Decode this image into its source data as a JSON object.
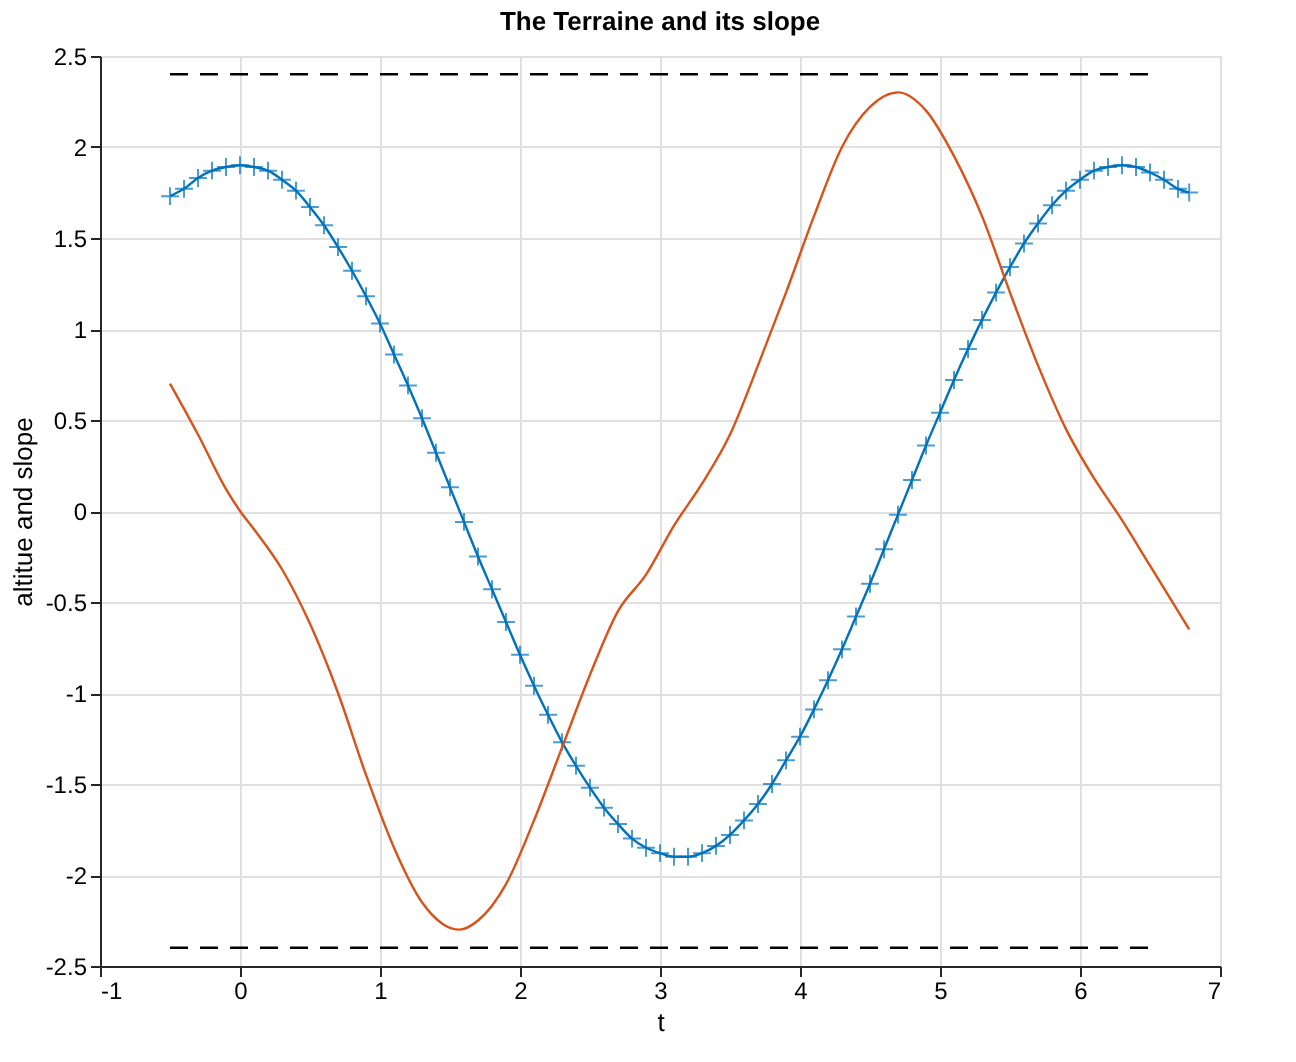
{
  "chart_data": {
    "type": "line",
    "title": "The Terraine and its slope",
    "xlabel": "t",
    "ylabel": "altitue and slope",
    "xlim": [
      -1,
      7
    ],
    "xticks": [
      -1,
      0,
      1,
      2,
      3,
      4,
      5,
      6,
      7
    ],
    "ylim": [
      -2.5,
      2.5
    ],
    "yticks": [
      -2.5,
      -2,
      -1.5,
      -1,
      -0.5,
      0,
      0.5,
      1,
      1.5,
      2,
      2.5
    ],
    "grid": true,
    "series": [
      {
        "type": "line",
        "color": "#0072bd",
        "marker": "cross",
        "line_style": "solid",
        "x": [
          -0.5,
          -0.4,
          -0.3,
          -0.2,
          -0.1,
          0,
          0.1,
          0.2,
          0.3,
          0.4,
          0.5,
          0.6,
          0.7,
          0.8,
          0.9,
          1.0,
          1.1,
          1.2,
          1.3,
          1.4,
          1.5,
          1.6,
          1.7,
          1.8,
          1.9,
          2.0,
          2.1,
          2.2,
          2.3,
          2.4,
          2.5,
          2.6,
          2.7,
          2.8,
          2.9,
          3.0,
          3.1,
          3.2,
          3.3,
          3.4,
          3.5,
          3.6,
          3.7,
          3.8,
          3.9,
          4.0,
          4.1,
          4.2,
          4.3,
          4.4,
          4.5,
          4.6,
          4.7,
          4.8,
          4.9,
          5.0,
          5.1,
          5.2,
          5.3,
          5.4,
          5.5,
          5.6,
          5.7,
          5.8,
          5.9,
          6.0,
          6.1,
          6.2,
          6.3,
          6.4,
          6.5,
          6.6,
          6.7,
          6.78
        ],
        "values": [
          1.73,
          1.77,
          1.83,
          1.87,
          1.89,
          1.9,
          1.89,
          1.87,
          1.82,
          1.76,
          1.67,
          1.57,
          1.45,
          1.32,
          1.18,
          1.03,
          0.86,
          0.69,
          0.51,
          0.32,
          0.13,
          -0.06,
          -0.25,
          -0.43,
          -0.61,
          -0.79,
          -0.96,
          -1.12,
          -1.27,
          -1.4,
          -1.52,
          -1.63,
          -1.72,
          -1.8,
          -1.85,
          -1.88,
          -1.9,
          -1.9,
          -1.88,
          -1.84,
          -1.78,
          -1.7,
          -1.61,
          -1.5,
          -1.37,
          -1.24,
          -1.09,
          -0.93,
          -0.76,
          -0.58,
          -0.4,
          -0.21,
          -0.02,
          0.17,
          0.36,
          0.54,
          0.72,
          0.89,
          1.05,
          1.2,
          1.34,
          1.47,
          1.58,
          1.68,
          1.76,
          1.82,
          1.87,
          1.89,
          1.9,
          1.89,
          1.86,
          1.82,
          1.77,
          1.75
        ]
      },
      {
        "type": "line",
        "color": "#d95319",
        "marker": "none",
        "line_style": "solid",
        "x": [
          -0.5,
          -0.3,
          -0.1,
          0,
          0.1,
          0.3,
          0.5,
          0.7,
          0.9,
          1.1,
          1.3,
          1.45,
          1.57,
          1.7,
          1.9,
          2.1,
          2.3,
          2.5,
          2.7,
          2.9,
          3.1,
          3.3,
          3.5,
          3.7,
          3.9,
          4.1,
          4.3,
          4.5,
          4.7,
          4.9,
          5.1,
          5.3,
          5.5,
          5.7,
          5.9,
          6.1,
          6.3,
          6.5,
          6.7,
          6.78
        ],
        "values": [
          0.7,
          0.42,
          0.12,
          0,
          -0.1,
          -0.32,
          -0.62,
          -1.0,
          -1.45,
          -1.85,
          -2.15,
          -2.27,
          -2.3,
          -2.25,
          -2.05,
          -1.7,
          -1.3,
          -0.9,
          -0.55,
          -0.35,
          -0.08,
          0.15,
          0.42,
          0.8,
          1.2,
          1.62,
          2.0,
          2.22,
          2.3,
          2.2,
          1.95,
          1.62,
          1.2,
          0.8,
          0.45,
          0.18,
          -0.05,
          -0.3,
          -0.55,
          -0.65
        ]
      },
      {
        "type": "line",
        "color": "#000000",
        "marker": "none",
        "line_style": "dashed",
        "x": [
          -0.5,
          6.5
        ],
        "values": [
          2.4,
          2.4
        ]
      },
      {
        "type": "line",
        "color": "#000000",
        "marker": "none",
        "line_style": "dashed",
        "x": [
          -0.5,
          6.5
        ],
        "values": [
          -2.4,
          -2.4
        ]
      }
    ]
  }
}
